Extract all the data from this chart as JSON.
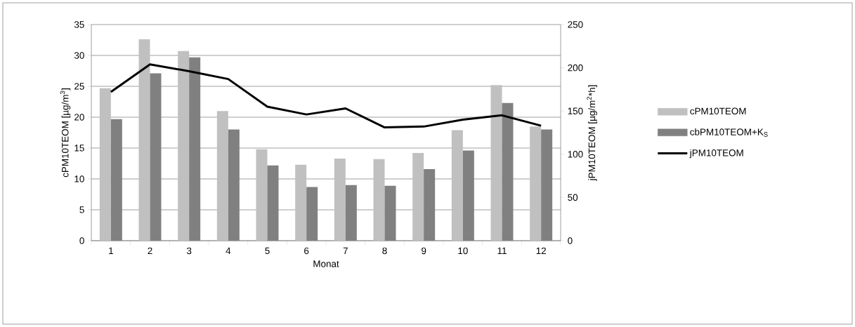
{
  "chart_data": {
    "type": "bar",
    "xlabel": "Monat",
    "ylabel": "cPM10TEOM [µg/m$^{3}$]",
    "y2label": "jPM10TEOM [µg/m$^{2}$*h]",
    "categories": [
      "1",
      "2",
      "3",
      "4",
      "5",
      "6",
      "7",
      "8",
      "9",
      "10",
      "11",
      "12"
    ],
    "series": [
      {
        "name": "cPM10TEOM",
        "color": "#c0c0c0",
        "values": [
          24.7,
          32.6,
          30.7,
          21.0,
          14.8,
          12.3,
          13.3,
          13.2,
          14.2,
          17.9,
          25.2,
          18.5
        ]
      },
      {
        "name": "cbPM10TEOM+K$_{S}$",
        "color": "#808080",
        "values": [
          19.7,
          27.1,
          29.7,
          18.0,
          12.2,
          8.7,
          9.0,
          8.9,
          11.6,
          14.6,
          22.3,
          18.0
        ]
      },
      {
        "name": "jPM10TEOM",
        "type": "line",
        "axis": "y2",
        "color": "#000000",
        "values": [
          172,
          204,
          196,
          187,
          155,
          146,
          153,
          131,
          132,
          140,
          145,
          133
        ]
      }
    ],
    "ylim": [
      0,
      35
    ],
    "yticks": [
      0,
      5,
      10,
      15,
      20,
      25,
      30,
      35
    ],
    "y2lim": [
      0,
      250
    ],
    "y2ticks": [
      0,
      50,
      100,
      150,
      200,
      250
    ],
    "grid": "y",
    "legend": "right"
  }
}
